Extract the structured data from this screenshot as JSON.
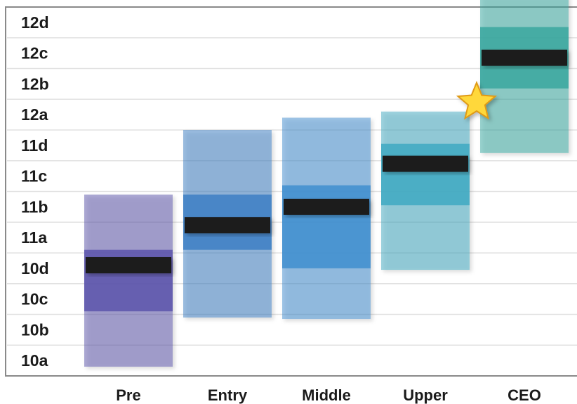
{
  "chart_data": {
    "type": "bar",
    "title": "",
    "xlabel": "",
    "ylabel": "",
    "y_tick_labels": [
      "10a",
      "10b",
      "10c",
      "10d",
      "11a",
      "11b",
      "11c",
      "11d",
      "12a",
      "12b",
      "12c",
      "12d"
    ],
    "categories": [
      "Pre",
      "Entry",
      "Middle",
      "Upper",
      "CEO"
    ],
    "grid": true,
    "legend": "none",
    "ranges": [
      {
        "category": "Pre",
        "outer": [
          -0.2,
          5.4
        ],
        "inner": [
          1.6,
          3.6
        ],
        "median": 3.1,
        "color": "#5c55ab"
      },
      {
        "category": "Entry",
        "outer": [
          1.4,
          7.5
        ],
        "inner": [
          3.6,
          5.4
        ],
        "median": 4.4,
        "color": "#3d7fc4"
      },
      {
        "category": "Middle",
        "outer": [
          1.35,
          7.9
        ],
        "inner": [
          3.0,
          5.7
        ],
        "median": 5.0,
        "color": "#3f8ecf"
      },
      {
        "category": "Upper",
        "outer": [
          2.95,
          8.1
        ],
        "inner": [
          5.05,
          7.05
        ],
        "median": 6.4,
        "color": "#3fa9c2"
      },
      {
        "category": "CEO",
        "outer": [
          6.75,
          11.9
        ],
        "inner": [
          8.85,
          10.85
        ],
        "median": 9.85,
        "color": "#3aa79f"
      }
    ],
    "marker": {
      "type": "star",
      "between": [
        "Upper",
        "CEO"
      ],
      "level": 8.4,
      "color": "#ffd83a"
    }
  }
}
